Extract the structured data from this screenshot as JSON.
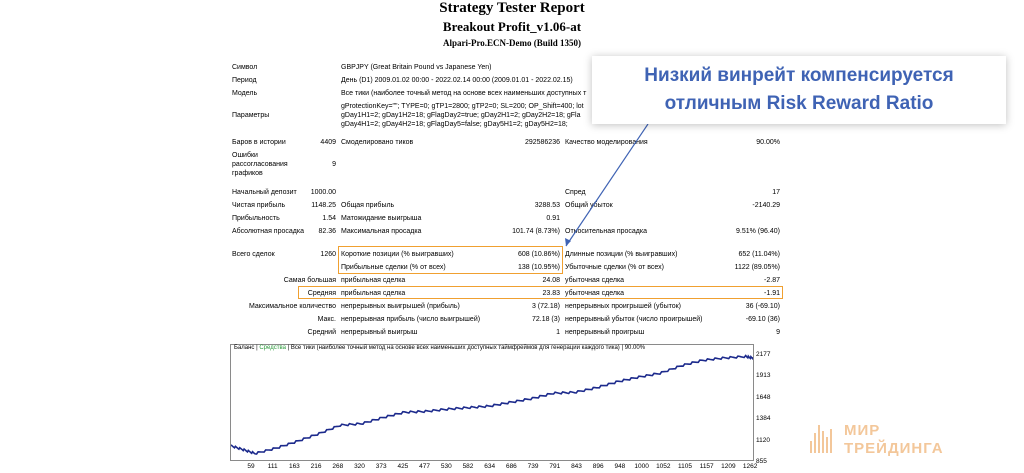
{
  "header": {
    "title": "Strategy Tester Report",
    "ea_name": "Breakout Profit_v1.06-at",
    "server": "Alpari-Pro.ECN-Demo (Build 1350)"
  },
  "settings": {
    "symbol_label": "Символ",
    "symbol_value": "GBPJPY (Great Britain Pound vs Japanese Yen)",
    "period_label": "Период",
    "period_value": "День (D1) 2009.01.02 00:00 - 2022.02.14 00:00 (2009.01.01 - 2022.02.15)",
    "model_label": "Модель",
    "model_value": "Все тики (наиболее точный метод на основе всех наименьших доступных т",
    "params_label": "Параметры",
    "params_line1": "gProtectionKey=\"\"; TYPE=0; gTP1=2800; gTP2=0; SL=200; OP_Shift=400; lot",
    "params_line2": "gDay1H1=2; gDay1H2=18; gFlagDay2=true; gDay2H1=2; gDay2H2=18; gFla",
    "params_line3": "gDay4H1=2; gDay4H2=18; gFlagDay5=false; gDay5H1=2; gDay5H2=18;"
  },
  "history": {
    "bars_label": "Баров в истории",
    "bars_value": "4409",
    "ticks_label": "Смоделировано тиков",
    "ticks_value": "292586236",
    "quality_label": "Качество моделирования",
    "quality_value": "90.00%",
    "errors_label_1": "Ошибки",
    "errors_label_2": "рассогласования",
    "errors_label_3": "графиков",
    "errors_value": "9"
  },
  "results": {
    "deposit_label": "Начальный депозит",
    "deposit_value": "1000.00",
    "spread_label": "Спред",
    "spread_value": "17",
    "net_label": "Чистая прибыль",
    "net_value": "1148.25",
    "gross_profit_label": "Общая прибыль",
    "gross_profit_value": "3288.53",
    "gross_loss_label": "Общий убыток",
    "gross_loss_value": "-2140.29",
    "pf_label": "Прибыльность",
    "pf_value": "1.54",
    "expected_label": "Матожидание выигрыша",
    "expected_value": "0.91",
    "abs_dd_label": "Абсолютная просадка",
    "abs_dd_value": "82.36",
    "max_dd_label": "Максимальная просадка",
    "max_dd_value": "101.74 (8.73%)",
    "rel_dd_label": "Относительная просадка",
    "rel_dd_value": "9.51% (96.40)"
  },
  "trades": {
    "total_label": "Всего сделок",
    "total_value": "1260",
    "short_label": "Короткие позиции (% выигравших)",
    "short_value": "608 (10.86%)",
    "long_label": "Длинные позиции (% выигравших)",
    "long_value": "652 (11.04%)",
    "win_label": "Прибыльные сделки (% от всех)",
    "win_value": "138 (10.95%)",
    "loss_label": "Убыточные сделки (% от всех)",
    "loss_value": "1122 (89.05%)",
    "largest_label": "Самая большая",
    "largest_profit_label": "прибыльная сделка",
    "largest_profit_value": "24.08",
    "largest_loss_label": "убыточная сделка",
    "largest_loss_value": "-2.87",
    "avg_label": "Средняя",
    "avg_profit_label": "прибыльная сделка",
    "avg_profit_value": "23.83",
    "avg_loss_label": "убыточная сделка",
    "avg_loss_value": "-1.91",
    "maxcount_label": "Максимальное количество",
    "cons_wins_label": "непрерывных выигрышей (прибыль)",
    "cons_wins_value": "3 (72.18)",
    "cons_losses_label": "непрерывных проигрышей (убыток)",
    "cons_losses_value": "36 (-69.10)",
    "max_label": "Макс.",
    "cons_profit_label": "непрерывная прибыль (число выигрышей)",
    "cons_profit_value": "72.18 (3)",
    "cons_loss_label": "непрерывный убыток (число проигрышей)",
    "cons_loss_value": "-69.10 (36)",
    "avgcons_label": "Средний",
    "avg_cons_wins_label": "непрерывный выигрыш",
    "avg_cons_wins_value": "1",
    "avg_cons_losses_label": "непрерывный проигрыш",
    "avg_cons_losses_value": "9"
  },
  "callout": {
    "line1": "Низкий винрейт компенсируется",
    "line2": "отличным Risk Reward Ratio",
    "text_color": "#3f63b4",
    "highlight_color": "#f0a030"
  },
  "graph": {
    "caption_balance": "Баланс",
    "caption_sep": " | ",
    "caption_equity": "Средства",
    "caption_rest": " | Все тики (наиболее точный метод на основе всех наименьших доступных таймфреймов для генерации каждого тика) | 90.00%",
    "line_color": "#1c2a8c",
    "yticks": [
      "2177",
      "1913",
      "1648",
      "1384",
      "1120",
      "855"
    ],
    "xticks": [
      "59",
      "111",
      "163",
      "216",
      "268",
      "320",
      "373",
      "425",
      "477",
      "530",
      "582",
      "634",
      "686",
      "739",
      "791",
      "843",
      "896",
      "948",
      "1000",
      "1052",
      "1105",
      "1157",
      "1209",
      "1262"
    ]
  },
  "chart_data": {
    "type": "line",
    "title": "",
    "xlabel": "",
    "ylabel": "",
    "ylim": [
      855,
      2177
    ],
    "xlim": [
      0,
      1280
    ],
    "series": [
      {
        "name": "Баланс",
        "x": [
          0,
          30,
          59,
          111,
          163,
          216,
          268,
          320,
          373,
          425,
          477,
          530,
          582,
          634,
          686,
          739,
          791,
          843,
          896,
          948,
          1000,
          1052,
          1105,
          1157,
          1209,
          1262,
          1280
        ],
        "values": [
          1000,
          950,
          900,
          970,
          1060,
          1160,
          1270,
          1290,
          1370,
          1440,
          1450,
          1480,
          1500,
          1520,
          1570,
          1620,
          1690,
          1700,
          1760,
          1840,
          1900,
          1950,
          2050,
          2120,
          2150,
          2170,
          2148
        ]
      }
    ]
  },
  "logo": {
    "line1": "МИР",
    "line2": "ТРЕЙДИНГА"
  }
}
